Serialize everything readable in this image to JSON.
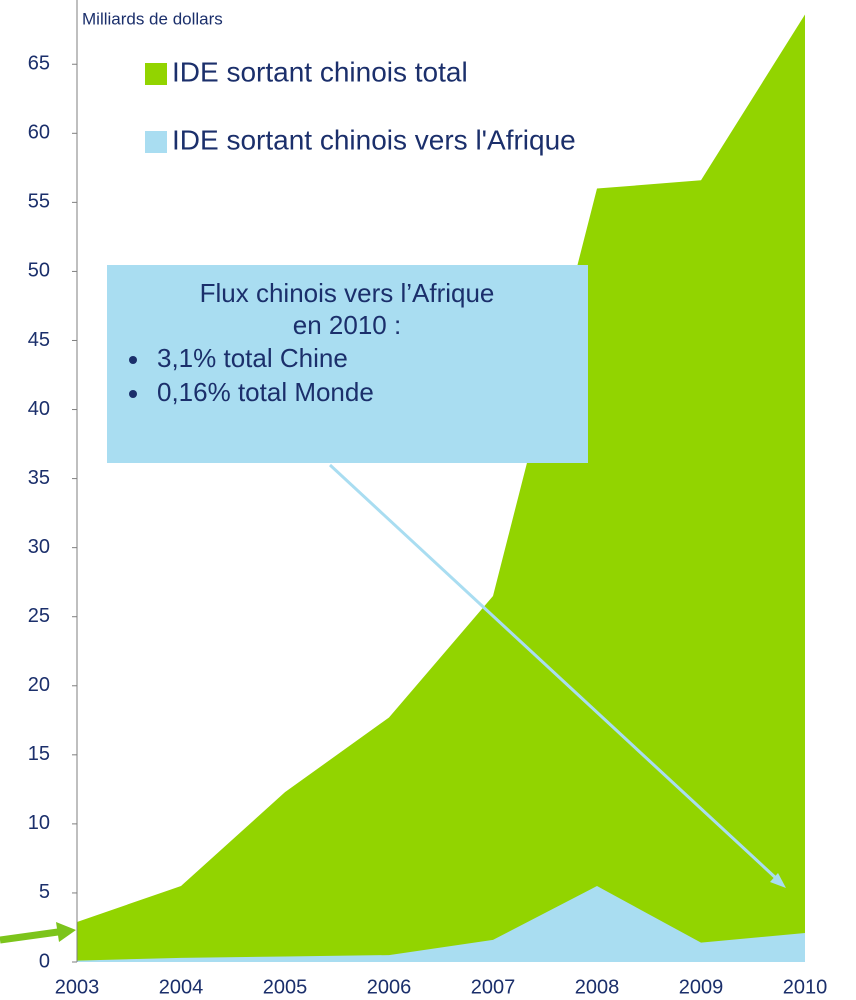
{
  "chart_data": {
    "type": "area",
    "y_label": "Milliards de dollars",
    "x": [
      2003,
      2004,
      2005,
      2006,
      2007,
      2008,
      2009,
      2010
    ],
    "xlim": [
      2003,
      2010
    ],
    "xticks": [
      2003,
      2004,
      2005,
      2006,
      2007,
      2008,
      2009,
      2010
    ],
    "ylim": [
      0,
      69
    ],
    "yticks": [
      0,
      5,
      10,
      15,
      20,
      25,
      30,
      35,
      40,
      45,
      50,
      55,
      60,
      65
    ],
    "series": [
      {
        "name": "IDE sortant chinois total",
        "color": "#92d400",
        "values": [
          2.9,
          5.5,
          12.3,
          17.7,
          26.5,
          56,
          56.6,
          68.6
        ]
      },
      {
        "name": "IDE sortant chinois vers l'Afrique",
        "color": "#a9ddf1",
        "values": [
          0.1,
          0.3,
          0.4,
          0.5,
          1.6,
          5.5,
          1.4,
          2.1
        ]
      }
    ],
    "annotation": {
      "title": [
        "Flux chinois vers l’Afrique",
        "en 2010 :"
      ],
      "bullets": [
        "3,1% total Chine",
        "0,16% total Monde"
      ]
    }
  }
}
